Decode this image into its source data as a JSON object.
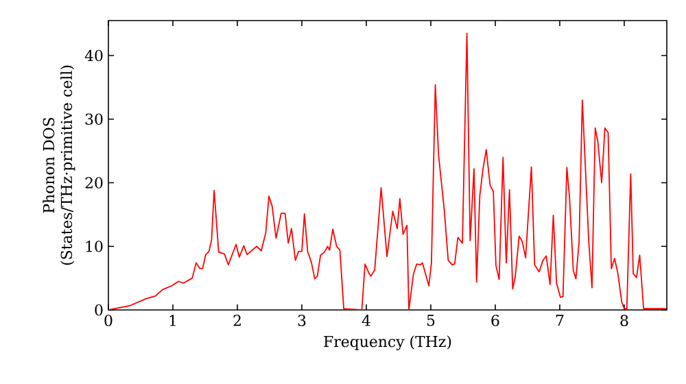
{
  "chart_data": {
    "type": "line",
    "xlabel": "Frequency (THz)",
    "ylabel": "Phonon DOS (States/THz·primitive cell)",
    "xlim": [
      0,
      8.66
    ],
    "ylim": [
      0,
      45.5
    ],
    "xticks": [
      0,
      1,
      2,
      3,
      4,
      5,
      6,
      7,
      8
    ],
    "yticks": [
      0,
      10,
      20,
      30,
      40
    ],
    "series": [
      {
        "color": "#ff0000",
        "x": [
          0,
          0.34,
          0.59,
          0.73,
          0.84,
          0.98,
          1.09,
          1.16,
          1.3,
          1.36,
          1.42,
          1.46,
          1.51,
          1.56,
          1.6,
          1.64,
          1.71,
          1.8,
          1.86,
          1.98,
          2.03,
          2.1,
          2.15,
          2.3,
          2.37,
          2.44,
          2.49,
          2.54,
          2.6,
          2.68,
          2.74,
          2.79,
          2.84,
          2.9,
          2.95,
          3.0,
          3.04,
          3.09,
          3.15,
          3.2,
          3.24,
          3.29,
          3.35,
          3.4,
          3.43,
          3.48,
          3.54,
          3.59,
          3.65,
          3.93,
          3.98,
          4.04,
          4.07,
          4.13,
          4.23,
          4.32,
          4.41,
          4.48,
          4.52,
          4.57,
          4.63,
          4.66,
          4.73,
          4.78,
          4.84,
          4.87,
          4.97,
          5.01,
          5.07,
          5.12,
          5.21,
          5.27,
          5.33,
          5.37,
          5.42,
          5.49,
          5.56,
          5.61,
          5.67,
          5.71,
          5.76,
          5.81,
          5.86,
          5.92,
          5.97,
          6.01,
          6.06,
          6.12,
          6.17,
          6.22,
          6.27,
          6.31,
          6.37,
          6.42,
          6.47,
          6.56,
          6.61,
          6.68,
          6.74,
          6.79,
          6.85,
          6.9,
          6.95,
          7.01,
          7.05,
          7.11,
          7.15,
          7.21,
          7.25,
          7.3,
          7.35,
          7.45,
          7.5,
          7.55,
          7.59,
          7.65,
          7.7,
          7.75,
          7.8,
          7.85,
          7.9,
          7.96,
          8.0,
          8.04,
          8.1,
          8.14,
          8.19,
          8.24,
          8.3,
          8.65
        ],
        "values": [
          0,
          0.7,
          1.8,
          2.2,
          3.2,
          3.8,
          4.5,
          4.2,
          5.0,
          7.4,
          6.5,
          6.5,
          8.7,
          9.2,
          11,
          18.8,
          9.1,
          8.8,
          7.1,
          10.3,
          8.3,
          10.1,
          8.7,
          10.0,
          9.3,
          12.1,
          17.9,
          16.3,
          11.3,
          15.2,
          15.2,
          10.5,
          12.8,
          7.8,
          9.2,
          9.2,
          15.1,
          9.2,
          7.4,
          4.9,
          5.3,
          8.6,
          9.1,
          10.0,
          9.4,
          12.7,
          10.0,
          9.4,
          0.2,
          0,
          7.2,
          5.8,
          5.3,
          6.3,
          19.2,
          8.4,
          15.5,
          12.8,
          17.5,
          11.9,
          13.3,
          0,
          5.6,
          7.2,
          7.1,
          7.4,
          3.8,
          7.4,
          35.4,
          24.4,
          15.6,
          7.8,
          7.1,
          7.2,
          11.4,
          10.5,
          43.5,
          10.9,
          22.2,
          4.4,
          18,
          22.2,
          25.2,
          19.6,
          18.6,
          7.0,
          4.8,
          24.0,
          7.4,
          18.9,
          3.3,
          5.3,
          11.6,
          10.7,
          8.2,
          22.5,
          7.1,
          6.0,
          7.8,
          8.5,
          4.0,
          14.9,
          4.2,
          2.0,
          2.1,
          22.4,
          17.9,
          6.2,
          4.9,
          10.7,
          33.0,
          10.7,
          3.5,
          28.6,
          26.5,
          20.0,
          28.6,
          27.9,
          6.5,
          8.1,
          5.8,
          1.3,
          0.2,
          0.2,
          21.4,
          5.7,
          5.1,
          8.6,
          0.2,
          0.2
        ]
      }
    ]
  }
}
